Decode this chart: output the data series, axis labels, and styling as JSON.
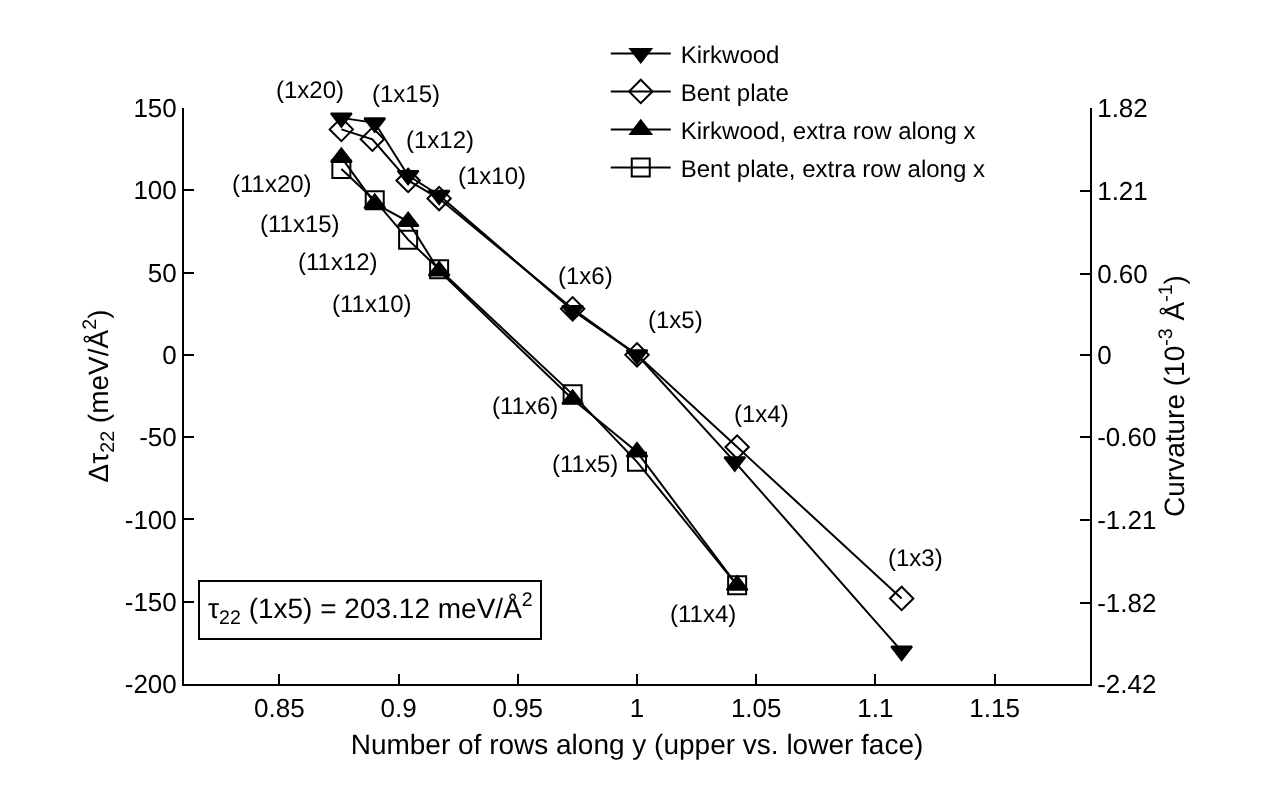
{
  "chart_data": {
    "type": "line",
    "xlabel": "Number of rows along y (upper vs. lower face)",
    "ylabel": "Δτ$_{22}$ (meV/Å$^{2}$)",
    "y2label": "Curvature (10$^{-3}$ Å$^{-1}$)",
    "xlim": [
      0.81,
      1.19
    ],
    "xticks": [
      0.85,
      0.9,
      0.95,
      1,
      1.05,
      1.1,
      1.15
    ],
    "ylim": [
      -200,
      150
    ],
    "yticks": [
      -200,
      -150,
      -100,
      -50,
      0,
      50,
      100,
      150
    ],
    "y2lim": [
      -2.42,
      1.82
    ],
    "y2ticks": [
      -2.42,
      -1.82,
      -1.21,
      {
        "value": -0.6,
        "label": "-0.60"
      },
      0,
      {
        "value": 0.6,
        "label": "0.60"
      },
      1.21,
      1.82
    ],
    "legend": "top right",
    "line_style": "solid",
    "series": [
      {
        "name": "Kirkwood",
        "color": "#000000",
        "marker": "triangle-down",
        "x": [
          0.876,
          0.89,
          0.904,
          0.917,
          0.973,
          1.0,
          1.041,
          1.111
        ],
        "values": [
          144,
          141,
          109,
          97,
          27,
          0,
          -65,
          -180
        ]
      },
      {
        "name": "Bent plate",
        "color": "#000000",
        "marker": "diamond-open",
        "x": [
          0.876,
          0.889,
          0.904,
          0.917,
          0.973,
          1.0,
          1.042,
          1.111
        ],
        "values": [
          137,
          131,
          106,
          95,
          28,
          0,
          -56,
          -148
        ]
      },
      {
        "name": "Kirkwood, extra row along x",
        "color": "#000000",
        "marker": "triangle",
        "x": [
          0.876,
          0.89,
          0.904,
          0.917,
          0.973,
          1.0,
          1.042
        ],
        "values": [
          120,
          92,
          81,
          51,
          -27,
          -59,
          -140
        ]
      },
      {
        "name": "Bent plate, extra row along x",
        "color": "#000000",
        "marker": "square-open",
        "x": [
          0.876,
          0.89,
          0.904,
          0.917,
          0.973,
          1.0,
          1.042
        ],
        "values": [
          113,
          94,
          70,
          52,
          -24,
          -65,
          -140
        ]
      }
    ],
    "annotations": [
      {
        "text": "(1x20)",
        "x": 0.876,
        "y": 144
      },
      {
        "text": "(1x15)",
        "x": 0.89,
        "y": 141
      },
      {
        "text": "(1x12)",
        "x": 0.904,
        "y": 109
      },
      {
        "text": "(1x10)",
        "x": 0.917,
        "y": 97
      },
      {
        "text": "(1x6)",
        "x": 0.973,
        "y": 27
      },
      {
        "text": "(1x5)",
        "x": 1.0,
        "y": 0
      },
      {
        "text": "(1x4)",
        "x": 1.042,
        "y": -56
      },
      {
        "text": "(1x3)",
        "x": 1.111,
        "y": -148
      },
      {
        "text": "(11x20)",
        "x": 0.876,
        "y": 120
      },
      {
        "text": "(11x15)",
        "x": 0.89,
        "y": 92
      },
      {
        "text": "(11x12)",
        "x": 0.904,
        "y": 81
      },
      {
        "text": "(11x10)",
        "x": 0.917,
        "y": 51
      },
      {
        "text": "(11x6)",
        "x": 0.973,
        "y": -27
      },
      {
        "text": "(11x5)",
        "x": 1.0,
        "y": -59
      },
      {
        "text": "(11x4)",
        "x": 1.042,
        "y": -140
      },
      "τ$_{22}$ (1x5) = 203.12 meV/Å$^{2}$"
    ]
  }
}
